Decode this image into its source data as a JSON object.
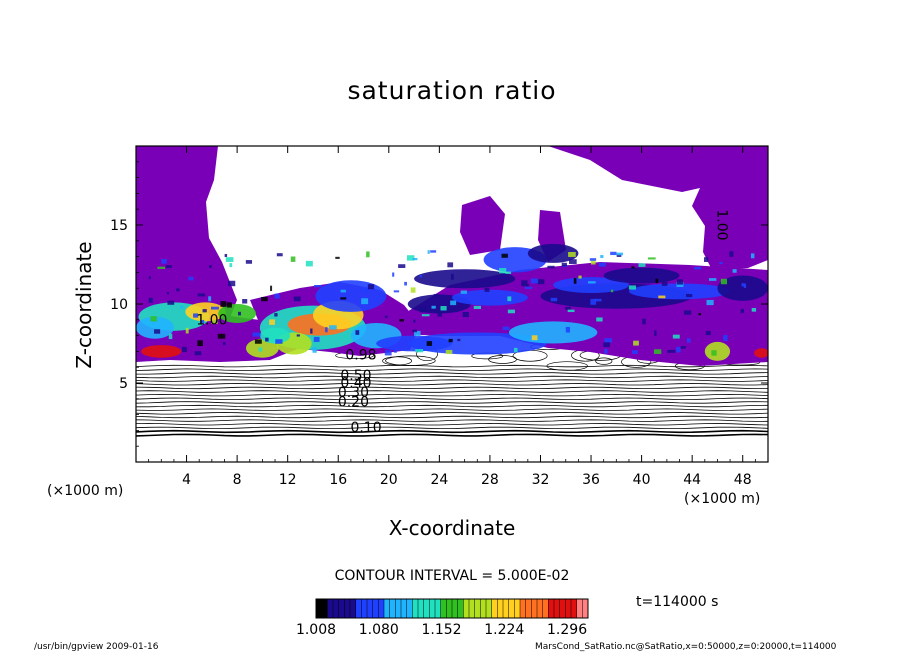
{
  "chart_data": {
    "type": "heatmap",
    "title": "saturation ratio",
    "xlabel": "X-coordinate",
    "ylabel": "Z-coordinate",
    "x_unit_label": "(×1000 m)",
    "y_unit_label": "(×1000 m)",
    "xlim": [
      0,
      50
    ],
    "ylim": [
      0,
      20
    ],
    "x_ticks": [
      4,
      8,
      12,
      16,
      20,
      24,
      28,
      32,
      36,
      40,
      44,
      48
    ],
    "y_ticks": [
      5,
      10,
      15
    ],
    "contour_interval_label": "CONTOUR INTERVAL = 5.000E-02",
    "contour_labels": [
      {
        "text": "0.10",
        "x": 18.2,
        "z": 1.9
      },
      {
        "text": "0.20",
        "x": 17.2,
        "z": 3.5
      },
      {
        "text": "0.30",
        "x": 17.2,
        "z": 4.1
      },
      {
        "text": "0.40",
        "x": 17.4,
        "z": 4.7
      },
      {
        "text": "0.50",
        "x": 17.4,
        "z": 5.2
      },
      {
        "text": "0.98",
        "x": 17.8,
        "z": 6.5
      },
      {
        "text": "1.00",
        "x": 6.0,
        "z": 8.7
      },
      {
        "text": "1.00",
        "x": 46.0,
        "z": 15.0
      }
    ],
    "colorbar": {
      "min": 1.008,
      "max": 1.32,
      "tick_labels": [
        "1.008",
        "1.080",
        "1.152",
        "1.224",
        "1.296"
      ],
      "tick_values": [
        1.008,
        1.08,
        1.152,
        1.224,
        1.296
      ],
      "colors": [
        "#000000",
        "#1a0a8c",
        "#2040ff",
        "#20b4ff",
        "#20e0c0",
        "#30c020",
        "#b0e020",
        "#ffd020",
        "#ff7020",
        "#e01010",
        "#ff8080"
      ]
    },
    "saturated_color": "#7a00b8",
    "time_label": "t=114000 s",
    "footer_left": "/usr/bin/gpview   2009-01-16",
    "footer_right": "MarsCond_SatRatio.nc@SatRatio,x=0:50000,z=0:20000,t=114000"
  }
}
